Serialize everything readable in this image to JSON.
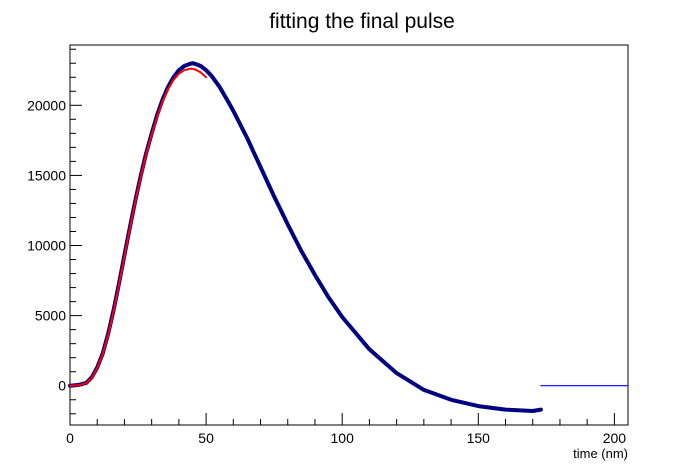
{
  "chart_data": {
    "type": "line",
    "title": "fitting the final pulse",
    "xlabel": "time (nm)",
    "ylabel": "",
    "xlim": [
      0,
      205
    ],
    "ylim": [
      -2800,
      24300
    ],
    "x_ticks": [
      0,
      50,
      100,
      150,
      200
    ],
    "y_ticks": [
      0,
      5000,
      10000,
      15000,
      20000
    ],
    "grid": false,
    "legend": "none",
    "series": [
      {
        "style": "data",
        "color": "#000080",
        "x": [
          0,
          3,
          6,
          8,
          10,
          12,
          14,
          16,
          18,
          20,
          22,
          24,
          26,
          28,
          30,
          32,
          34,
          36,
          38,
          40,
          42,
          44,
          45,
          46,
          48,
          50,
          52,
          55,
          58,
          60,
          65,
          70,
          75,
          80,
          85,
          90,
          95,
          100,
          110,
          120,
          130,
          140,
          150,
          160,
          170,
          173
        ],
        "y": [
          0,
          50,
          200,
          600,
          1300,
          2300,
          3700,
          5400,
          7300,
          9300,
          11300,
          13200,
          15000,
          16600,
          18000,
          19300,
          20400,
          21300,
          22000,
          22500,
          22800,
          22950,
          23000,
          22950,
          22800,
          22500,
          22100,
          21300,
          20300,
          19600,
          17700,
          15600,
          13500,
          11500,
          9600,
          7900,
          6300,
          4900,
          2600,
          900,
          -300,
          -1000,
          -1450,
          -1700,
          -1800,
          -1700
        ]
      },
      {
        "style": "baseline",
        "color": "#0000ff",
        "x": [
          173,
          205
        ],
        "y": [
          0,
          0
        ]
      },
      {
        "style": "fit",
        "color": "#ff0000",
        "x": [
          0,
          3,
          6,
          8,
          10,
          12,
          14,
          16,
          18,
          20,
          22,
          24,
          26,
          28,
          30,
          32,
          34,
          36,
          38,
          40,
          42,
          44,
          45,
          46,
          48,
          50
        ],
        "y": [
          0,
          40,
          180,
          550,
          1250,
          2250,
          3600,
          5300,
          7200,
          9200,
          11200,
          13100,
          14900,
          16500,
          17900,
          19150,
          20250,
          21150,
          21800,
          22250,
          22500,
          22600,
          22600,
          22550,
          22350,
          22000
        ]
      }
    ]
  }
}
